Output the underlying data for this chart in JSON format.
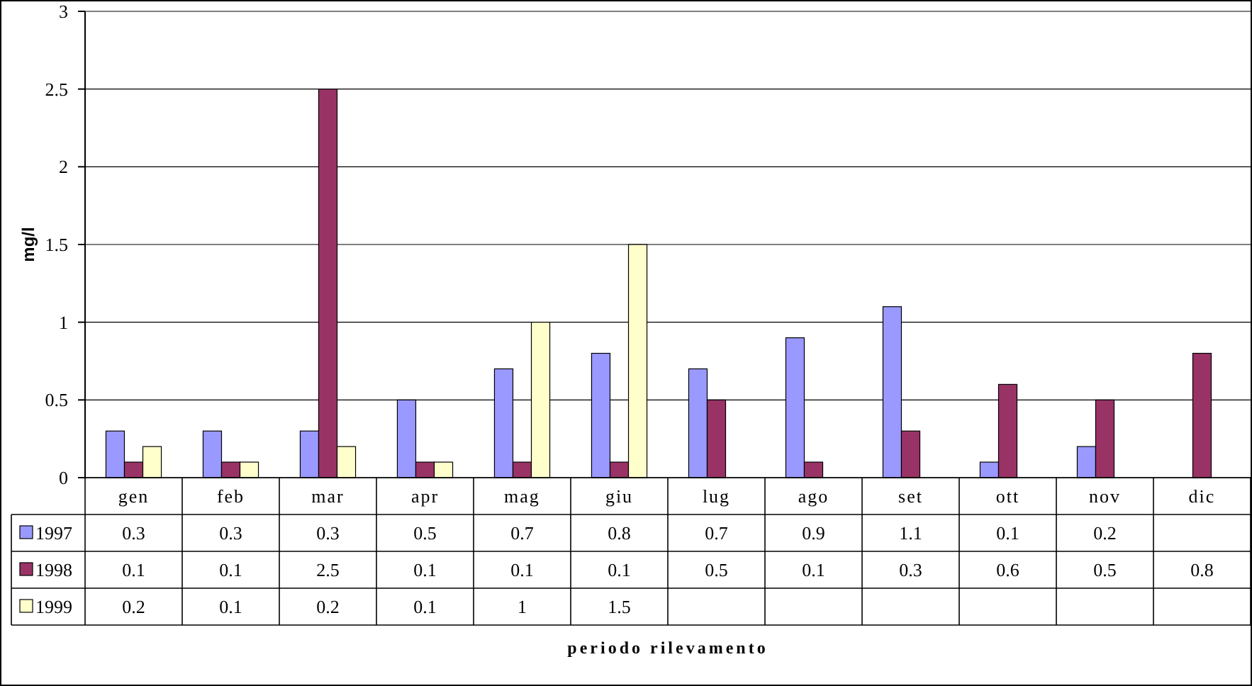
{
  "chart_data": {
    "type": "bar",
    "ylabel": "mg/l",
    "annotations": [
      "periodo rilevamento"
    ],
    "categories": [
      "gen",
      "feb",
      "mar",
      "apr",
      "mag",
      "giu",
      "lug",
      "ago",
      "set",
      "ott",
      "nov",
      "dic"
    ],
    "series": [
      {
        "name": "1997",
        "color": "#9999ff",
        "values": [
          0.3,
          0.3,
          0.3,
          0.5,
          0.7,
          0.8,
          0.7,
          0.9,
          1.1,
          0.1,
          0.2,
          null
        ]
      },
      {
        "name": "1998",
        "color": "#993366",
        "values": [
          0.1,
          0.1,
          2.5,
          0.1,
          0.1,
          0.1,
          0.5,
          0.1,
          0.3,
          0.6,
          0.5,
          0.8
        ]
      },
      {
        "name": "1999",
        "color": "#ffffcc",
        "values": [
          0.2,
          0.1,
          0.2,
          0.1,
          1,
          1.5,
          null,
          null,
          null,
          null,
          null,
          null
        ]
      }
    ],
    "ylim": [
      0,
      3
    ],
    "yticks": [
      0,
      0.5,
      1,
      1.5,
      2,
      2.5,
      3
    ],
    "grid": "y",
    "data_labels": true,
    "legend": "bottom left"
  }
}
